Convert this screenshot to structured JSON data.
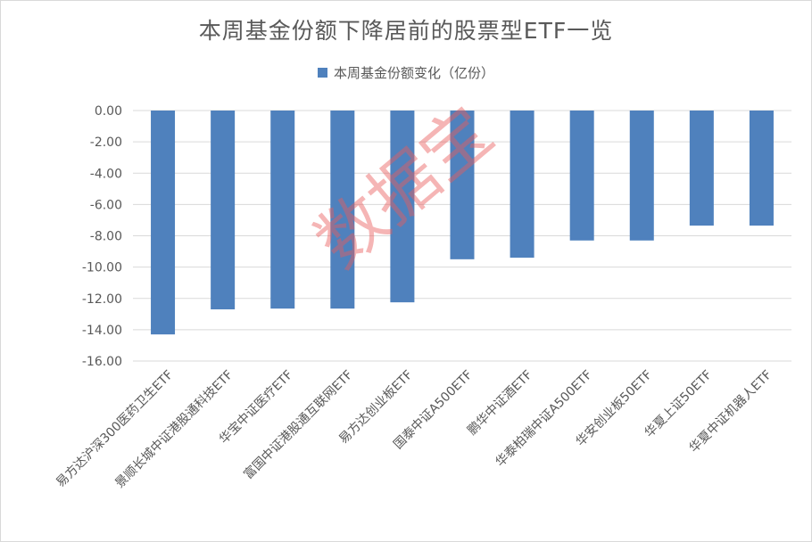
{
  "chart_data": {
    "type": "bar",
    "title": "本周基金份额下降居前的股票型ETF一览",
    "categories": [
      "易方达沪深300医药卫生ETF",
      "景顺长城中证港股通科技ETF",
      "华宝中证医疗ETF",
      "富国中证港股通互联网ETF",
      "易方达创业板ETF",
      "国泰中证A500ETF",
      "鹏华中证酒ETF",
      "华泰柏瑞中证A500ETF",
      "华安创业板50ETF",
      "华夏上证50ETF",
      "华夏中证机器人ETF"
    ],
    "series": [
      {
        "name": "本周基金份额变化（亿份）",
        "values": [
          -14.3,
          -12.7,
          -12.65,
          -12.65,
          -12.25,
          -9.5,
          -9.4,
          -8.3,
          -8.3,
          -7.35,
          -7.35
        ]
      }
    ],
    "xlabel": "",
    "ylabel": "",
    "ylim": [
      -16,
      0
    ],
    "yticks": [
      "0.00",
      "-2.00",
      "-4.00",
      "-6.00",
      "-8.00",
      "-10.00",
      "-12.00",
      "-14.00",
      "-16.00"
    ],
    "grid": true,
    "legend_position": "top",
    "bar_color": "#4f81bd",
    "grid_color": "#d9d9d9",
    "text_color": "#595959"
  },
  "watermark": {
    "text": "数据宝",
    "color": "#e95c5c"
  }
}
